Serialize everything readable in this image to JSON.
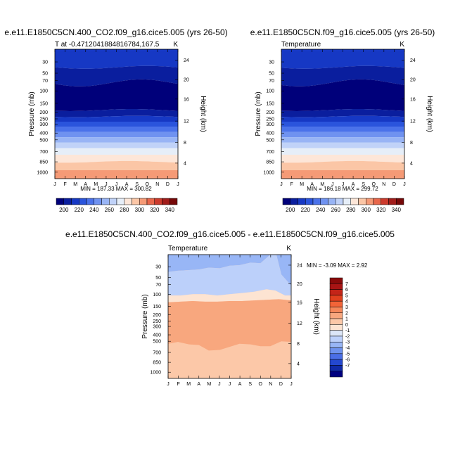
{
  "chart_data": [
    {
      "type": "contour",
      "title": "e.e11.E1850C5CN.400_CO2.f09_g16.cice5.005 (yrs 26-50)",
      "subtitle_left": "T at -0.4712041884816784,167.5",
      "subtitle_right": "K",
      "xlabel": "",
      "ylabel": "Pressure (mb)",
      "ylabel_right": "Height (km)",
      "x_ticks": [
        "J",
        "F",
        "M",
        "A",
        "M",
        "J",
        "J",
        "A",
        "S",
        "O",
        "N",
        "D",
        "J"
      ],
      "y_ticks": [
        "30",
        "50",
        "70",
        "100",
        "150",
        "200",
        "250",
        "300",
        "400",
        "500",
        "700",
        "850",
        "1000"
      ],
      "y_ticks_right": [
        "24",
        "20",
        "16",
        "12",
        "8",
        "4"
      ],
      "min_max": "MIN = 187.33 MAX = 300.82",
      "levels": [
        200,
        220,
        240,
        260,
        280,
        300,
        320,
        340
      ],
      "level_labels": [
        "200",
        "220",
        "240",
        "260",
        "280",
        "300",
        "320",
        "340"
      ],
      "colors": [
        "#00007a",
        "#0a1e9e",
        "#1638c4",
        "#2a54dc",
        "#4a72ea",
        "#6f92f0",
        "#98b4f5",
        "#c0d2f8",
        "#e6eef8",
        "#fde6d8",
        "#fbc6a6",
        "#f59a76",
        "#e8664a",
        "#cc3a2c",
        "#a11c1a",
        "#760808"
      ]
    },
    {
      "type": "contour",
      "title": "e.e11.E1850C5CN.f09_g16.cice5.005 (yrs 26-50)",
      "subtitle_left": "Temperature",
      "subtitle_right": "K",
      "xlabel": "",
      "ylabel": "Pressure (mb)",
      "ylabel_right": "Height (km)",
      "x_ticks": [
        "J",
        "F",
        "M",
        "A",
        "M",
        "J",
        "J",
        "A",
        "S",
        "O",
        "N",
        "D",
        "J"
      ],
      "y_ticks": [
        "30",
        "50",
        "70",
        "100",
        "150",
        "200",
        "250",
        "300",
        "400",
        "500",
        "700",
        "850",
        "1000"
      ],
      "y_ticks_right": [
        "24",
        "20",
        "16",
        "12",
        "8",
        "4"
      ],
      "min_max": "MIN = 186.18 MAX = 299.72",
      "levels": [
        200,
        220,
        240,
        260,
        280,
        300,
        320,
        340
      ],
      "level_labels": [
        "200",
        "220",
        "240",
        "260",
        "280",
        "300",
        "320",
        "340"
      ],
      "colors": [
        "#00007a",
        "#0a1e9e",
        "#1638c4",
        "#2a54dc",
        "#4a72ea",
        "#6f92f0",
        "#98b4f5",
        "#c0d2f8",
        "#e6eef8",
        "#fde6d8",
        "#fbc6a6",
        "#f59a76",
        "#e8664a",
        "#cc3a2c",
        "#a11c1a",
        "#760808"
      ]
    },
    {
      "type": "contour",
      "title": "e.e11.E1850C5CN.400_CO2.f09_g16.cice5.005 - e.e11.E1850C5CN.f09_g16.cice5.005",
      "subtitle_left": "Temperature",
      "subtitle_right": "K",
      "xlabel": "",
      "ylabel": "Pressure (mb)",
      "ylabel_right": "Height (km)",
      "x_ticks": [
        "J",
        "F",
        "M",
        "A",
        "M",
        "J",
        "J",
        "A",
        "S",
        "O",
        "N",
        "D",
        "J"
      ],
      "y_ticks": [
        "30",
        "50",
        "70",
        "100",
        "150",
        "200",
        "250",
        "300",
        "400",
        "500",
        "700",
        "850",
        "1000"
      ],
      "y_ticks_right": [
        "24",
        "20",
        "16",
        "12",
        "8",
        "4"
      ],
      "min_max": "MIN =  -3.09 MAX =   2.92",
      "level_labels": [
        "7",
        "6",
        "5",
        "4",
        "3",
        "2",
        "1",
        "0",
        "-1",
        "-2",
        "-3",
        "-4",
        "-5",
        "-6",
        "-7"
      ],
      "colors": [
        "#8a0a0a",
        "#a81414",
        "#c42418",
        "#e0401e",
        "#f26438",
        "#f5875a",
        "#f8a77e",
        "#fcc8a8",
        "#fde4d2",
        "#dce6f8",
        "#bcd0fa",
        "#98b6f6",
        "#6e92ee",
        "#4a6ee6",
        "#2448d0",
        "#102aa8",
        "#000080"
      ],
      "regions": [
        "-1 to -2",
        "-1 to 0",
        "0 to 1",
        "2 to 3",
        "1 to 2"
      ]
    }
  ]
}
